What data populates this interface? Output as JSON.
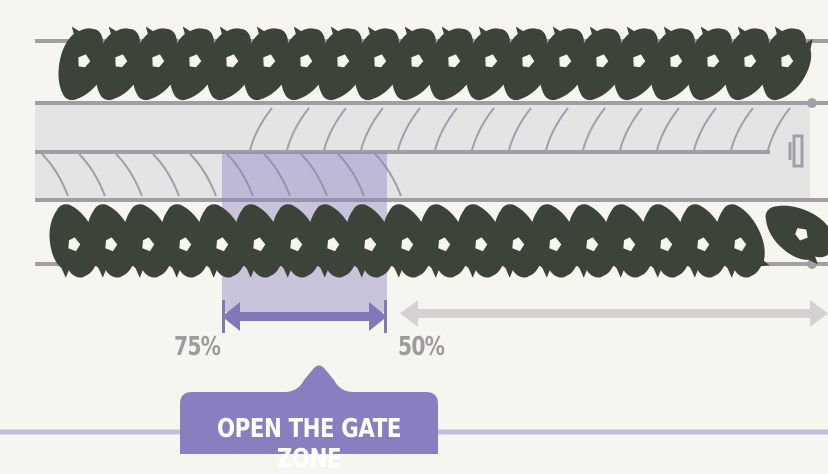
{
  "labels": {
    "percent_left": "75%",
    "percent_right": "50%",
    "gate_zone": "OPEN THE GATE ZONE"
  },
  "colors": {
    "background": "#f7f5ef",
    "track_line": "#9fa0a6",
    "channel_fill": "#e4e4e4",
    "gate_zone_fill": "#8a80c0",
    "gate_arrow": "#8377b8",
    "grey_arrow": "#d2d2d2",
    "cattle": "#3c4338",
    "percent_text": "#9b9c9e",
    "banner": "#8a7ec0"
  },
  "icons": {
    "animal": "cow-silhouette-icon",
    "gate": "gate-end-icon"
  }
}
